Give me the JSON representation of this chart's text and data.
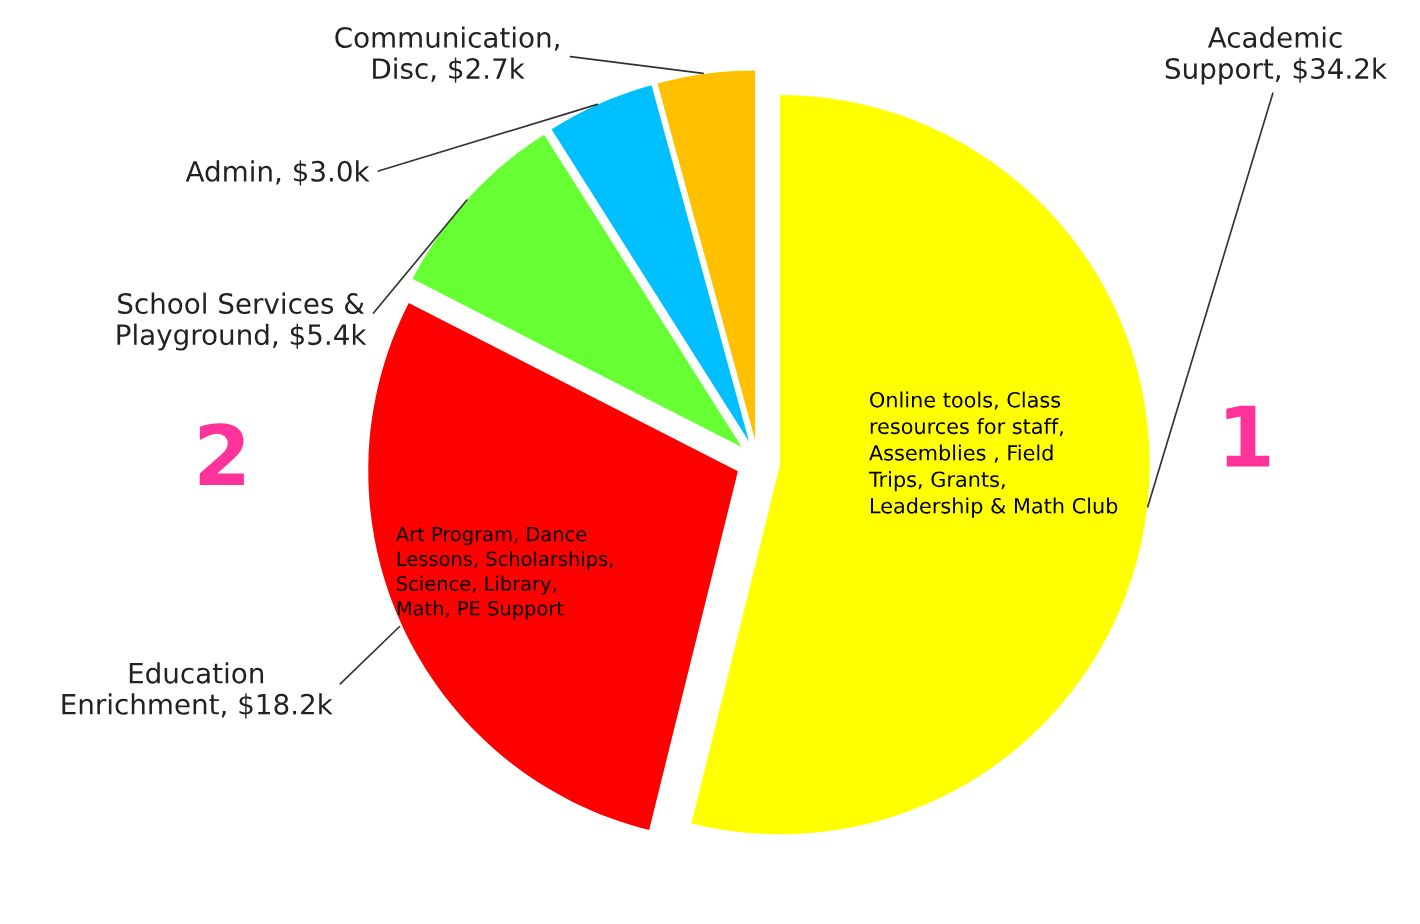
{
  "chart_data": {
    "type": "pie",
    "categories": [
      "Academic Support",
      "Education Enrichment",
      "School Services & Playground",
      "Admin",
      "Communication, Disc"
    ],
    "values": [
      34.2,
      18.2,
      5.4,
      3.0,
      2.7
    ],
    "value_labels": [
      "$34.2k",
      "$18.2k",
      "$5.4k",
      "$3.0k",
      "$2.7k"
    ],
    "colors": [
      "#ffff00",
      "#ff0000",
      "#66ff33",
      "#00bfff",
      "#ffc000"
    ],
    "annotations": [
      "Online tools, Class resources for staff, Assemblies , Field Trips, Grants, Leadership & Math Club",
      "Art Program, Dance Lessons, Scholarships, Science, Library, Math, PE Support",
      "1",
      "2"
    ],
    "legend": false
  }
}
